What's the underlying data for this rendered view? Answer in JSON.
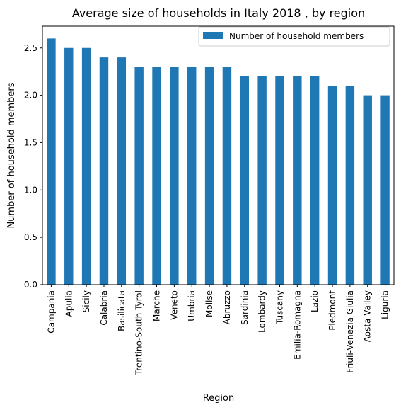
{
  "chart_data": {
    "type": "bar",
    "title": "Average size of households in Italy 2018 , by region",
    "xlabel": "Region",
    "ylabel": "Number of household members",
    "categories": [
      "Campania",
      "Apulia",
      "Sicily",
      "Calabria",
      "Basilicata",
      "Trentino-South Tyrol",
      "Marche",
      "Veneto",
      "Umbria",
      "Molise",
      "Abruzzo",
      "Sardinia",
      "Lombardy",
      "Tuscany",
      "Emilia-Romagna",
      "Lazio",
      "Piedmont",
      "Friuli-Venezia Giulia",
      "Aosta Valley",
      "Liguria"
    ],
    "series": [
      {
        "name": "Number of household members",
        "color": "#1f77b4",
        "values": [
          2.6,
          2.5,
          2.5,
          2.4,
          2.4,
          2.3,
          2.3,
          2.3,
          2.3,
          2.3,
          2.3,
          2.2,
          2.2,
          2.2,
          2.2,
          2.2,
          2.1,
          2.1,
          2.0,
          2.0
        ]
      }
    ],
    "yticks": [
      "0.0",
      "0.5",
      "1.0",
      "1.5",
      "2.0",
      "2.5"
    ],
    "ylim": [
      0,
      2.73
    ],
    "grid": false,
    "legend_position": "top-right"
  }
}
